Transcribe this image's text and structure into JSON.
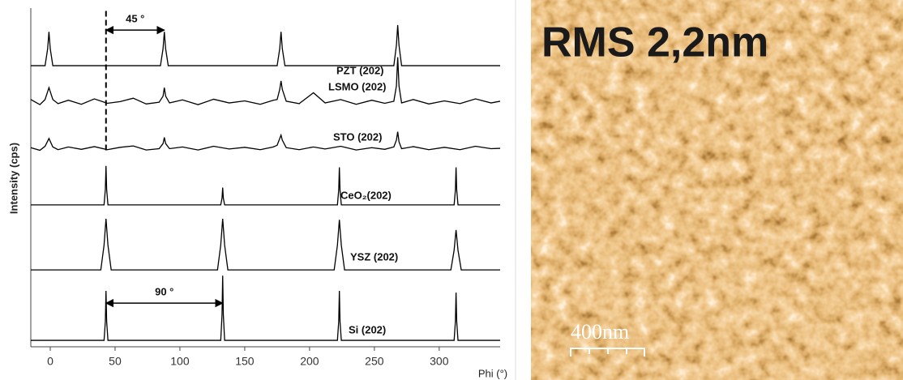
{
  "chart_data": {
    "type": "line",
    "xlabel": "Phi (°)",
    "ylabel": "Intensity (cps)",
    "xlim": [
      -15,
      347
    ],
    "ylim": [
      0,
      100
    ],
    "xticks": [
      0,
      50,
      100,
      150,
      200,
      250,
      300
    ],
    "series": [
      {
        "name": "PZT (202)",
        "color": "#000000",
        "x": [
          -15,
          -4,
          -2,
          -1,
          0,
          2,
          85,
          87,
          88,
          89,
          91,
          175,
          177,
          178,
          179,
          181,
          265,
          267,
          268,
          269,
          271,
          347
        ],
        "values": [
          83,
          83,
          88,
          93,
          88,
          83,
          83,
          88,
          93,
          88,
          83,
          83,
          88,
          93,
          88,
          83,
          83,
          89,
          95,
          89,
          83,
          83
        ]
      },
      {
        "name": "LSMO (202)",
        "color": "#000000",
        "x": [
          -15,
          -8,
          -4,
          -1,
          2,
          6,
          14,
          24,
          34,
          44,
          54,
          64,
          74,
          84,
          87,
          88,
          89,
          92,
          102,
          114,
          126,
          138,
          150,
          162,
          172,
          175,
          177,
          178,
          179,
          182,
          192,
          203,
          212,
          224,
          236,
          248,
          258,
          265,
          267,
          268,
          269,
          271,
          280,
          292,
          304,
          316,
          328,
          340,
          347
        ],
        "values": [
          73,
          71.5,
          73,
          76.5,
          73,
          71.8,
          72.8,
          71.6,
          73.2,
          71.9,
          72.4,
          73.4,
          71.7,
          72.2,
          74,
          76.5,
          74,
          72,
          72.9,
          71.5,
          73.1,
          72,
          72.6,
          71.6,
          72.8,
          73,
          76,
          78.5,
          76,
          72.5,
          71.8,
          75,
          72,
          73,
          71.6,
          72.8,
          71.9,
          72.5,
          77,
          85.5,
          77,
          72,
          73,
          71.7,
          72.6,
          71.8,
          73.2,
          72,
          72.5
        ]
      },
      {
        "name": "STO (202)",
        "color": "#000000",
        "x": [
          -15,
          -8,
          -4,
          -1,
          2,
          6,
          14,
          24,
          34,
          44,
          54,
          64,
          74,
          84,
          87,
          88,
          89,
          92,
          102,
          114,
          126,
          138,
          150,
          162,
          172,
          175,
          177,
          178,
          179,
          182,
          192,
          203,
          212,
          224,
          236,
          248,
          258,
          265,
          267,
          268,
          269,
          271,
          280,
          292,
          304,
          316,
          328,
          340,
          347
        ],
        "values": [
          58.8,
          58,
          59.2,
          61.5,
          59,
          58.2,
          59,
          58.3,
          59.1,
          58.2,
          58.9,
          59.3,
          58.1,
          58.5,
          60,
          61.8,
          60,
          58.5,
          59,
          58.1,
          59.2,
          58.4,
          58.9,
          58.2,
          59,
          59.5,
          61.5,
          62.5,
          61,
          58.8,
          58.2,
          59,
          58.4,
          59.2,
          58.1,
          58.8,
          58.3,
          59,
          61,
          63.5,
          60.5,
          58.5,
          59.1,
          58.2,
          58.9,
          58.2,
          59.2,
          58.5,
          58.6
        ]
      },
      {
        "name": "CeO₂(202)",
        "color": "#000000",
        "x": [
          -15,
          41.5,
          42.5,
          43,
          43.5,
          44.5,
          131.5,
          132.5,
          133,
          133.5,
          134.5,
          221.5,
          222.5,
          223,
          223.5,
          224.5,
          311.5,
          312.5,
          313,
          313.5,
          314.5,
          347
        ],
        "values": [
          41.9,
          41.9,
          46.5,
          53.4,
          46.5,
          41.9,
          41.9,
          43.9,
          47,
          43.9,
          41.9,
          41.9,
          46.3,
          53,
          46.3,
          41.9,
          41.9,
          46.3,
          53,
          46.3,
          41.9,
          41.9
        ]
      },
      {
        "name": "YSZ (202)",
        "color": "#000000",
        "x": [
          -15,
          39,
          41.5,
          43,
          44.5,
          47,
          129,
          131.5,
          133,
          134.5,
          137,
          219,
          221.5,
          223,
          224.5,
          227,
          309,
          311.5,
          313,
          314.5,
          317,
          347
        ],
        "values": [
          22.7,
          22.7,
          30,
          37.8,
          30,
          22.7,
          22.7,
          30,
          37.8,
          30,
          22.7,
          22.7,
          30,
          37.5,
          30,
          22.7,
          22.7,
          28.5,
          34.5,
          28.5,
          22.7,
          22.7
        ]
      },
      {
        "name": "Si (202)",
        "color": "#000000",
        "x": [
          -15,
          41.5,
          42.5,
          43,
          43.5,
          44.5,
          131.5,
          132.5,
          133,
          133.5,
          134.5,
          221.5,
          222.5,
          223,
          223.5,
          224.5,
          311.5,
          312.5,
          313,
          313.5,
          314.5,
          347
        ],
        "values": [
          1.9,
          1.9,
          7.5,
          16.5,
          7.5,
          1.9,
          1.9,
          9.5,
          21,
          9.5,
          1.9,
          1.9,
          7.5,
          16.5,
          7.5,
          1.9,
          1.9,
          7.5,
          16,
          7.5,
          1.9,
          1.9
        ]
      }
    ],
    "annotations": [
      {
        "text": "45 °",
        "x": [
          43,
          88
        ],
        "y": 93.5
      },
      {
        "text": "90 °",
        "x": [
          43,
          133
        ],
        "y": 12.9
      }
    ],
    "dashed_line": {
      "x": 43,
      "y": [
        58,
        100
      ]
    }
  },
  "image": {
    "title": "RMS 2,2nm",
    "scale_bar": "400nm"
  }
}
